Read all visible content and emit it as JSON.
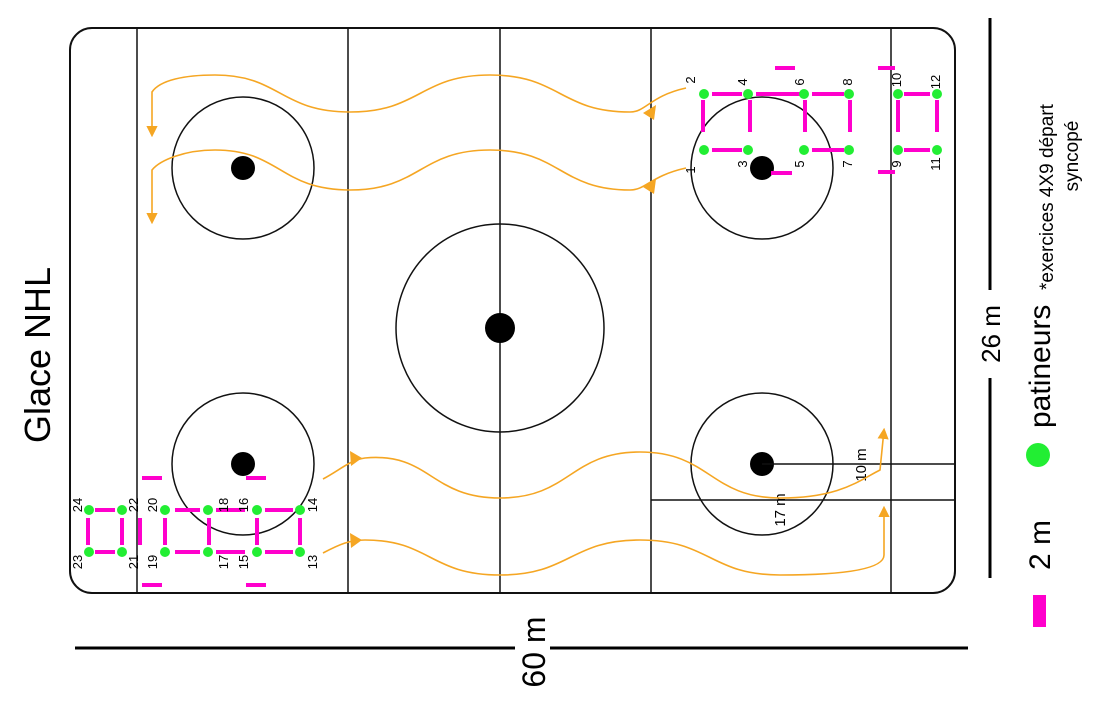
{
  "title": "Glace NHL",
  "dimensions": {
    "length": "60 m",
    "width": "26 m",
    "zone_width": "10 m",
    "zone_length": "17 m"
  },
  "legend": {
    "marker_label": "2 m",
    "player_label": "patineurs",
    "note_line1": "*exercices 4X9 départ",
    "note_line2": "syncopé"
  },
  "colors": {
    "marker": "#ff00cc",
    "player": "#22ee33",
    "path": "#f5a623",
    "line": "#000000"
  },
  "point_labels": [
    "1",
    "2",
    "3",
    "4",
    "5",
    "6",
    "7",
    "8",
    "9",
    "10",
    "11",
    "12",
    "13",
    "14",
    "15",
    "16",
    "17",
    "18",
    "19",
    "20",
    "21",
    "22",
    "23",
    "24"
  ]
}
